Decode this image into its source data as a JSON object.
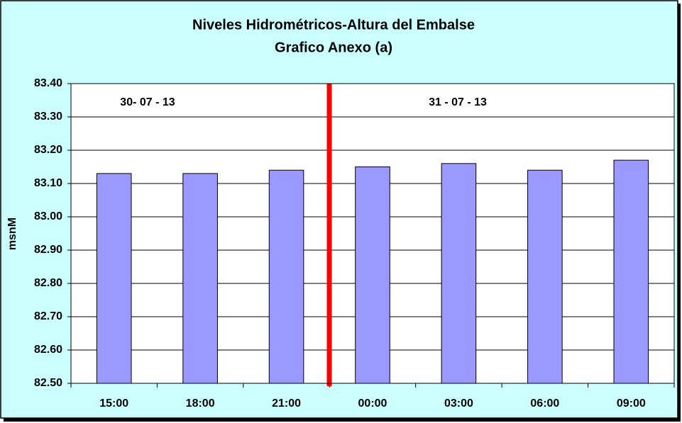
{
  "chart_data": {
    "type": "bar",
    "title": "Niveles Hidrométricos-Altura del Embalse",
    "subtitle": "Grafico Anexo (a)",
    "y_label": "msnM",
    "annotations": [
      "30- 07 - 13",
      "31 - 07 - 13"
    ],
    "categories": [
      "15:00",
      "18:00",
      "21:00",
      "00:00",
      "03:00",
      "06:00",
      "09:00"
    ],
    "values": [
      83.13,
      83.13,
      83.14,
      83.15,
      83.16,
      83.14,
      83.17
    ],
    "color": "#9999ff",
    "ylim": [
      82.5,
      83.4
    ],
    "yticks": [
      {
        "value": 82.5,
        "label": "82.50"
      },
      {
        "value": 82.6,
        "label": "82.60"
      },
      {
        "value": 82.7,
        "label": "82.70"
      },
      {
        "value": 82.8,
        "label": "82.80"
      },
      {
        "value": 82.9,
        "label": "82.90"
      },
      {
        "value": 83.0,
        "label": "83.00"
      },
      {
        "value": 83.1,
        "label": "83.10"
      },
      {
        "value": 83.2,
        "label": "83.20"
      },
      {
        "value": 83.3,
        "label": "83.30"
      },
      {
        "value": 83.4,
        "label": "83.40"
      }
    ],
    "grid": true
  }
}
